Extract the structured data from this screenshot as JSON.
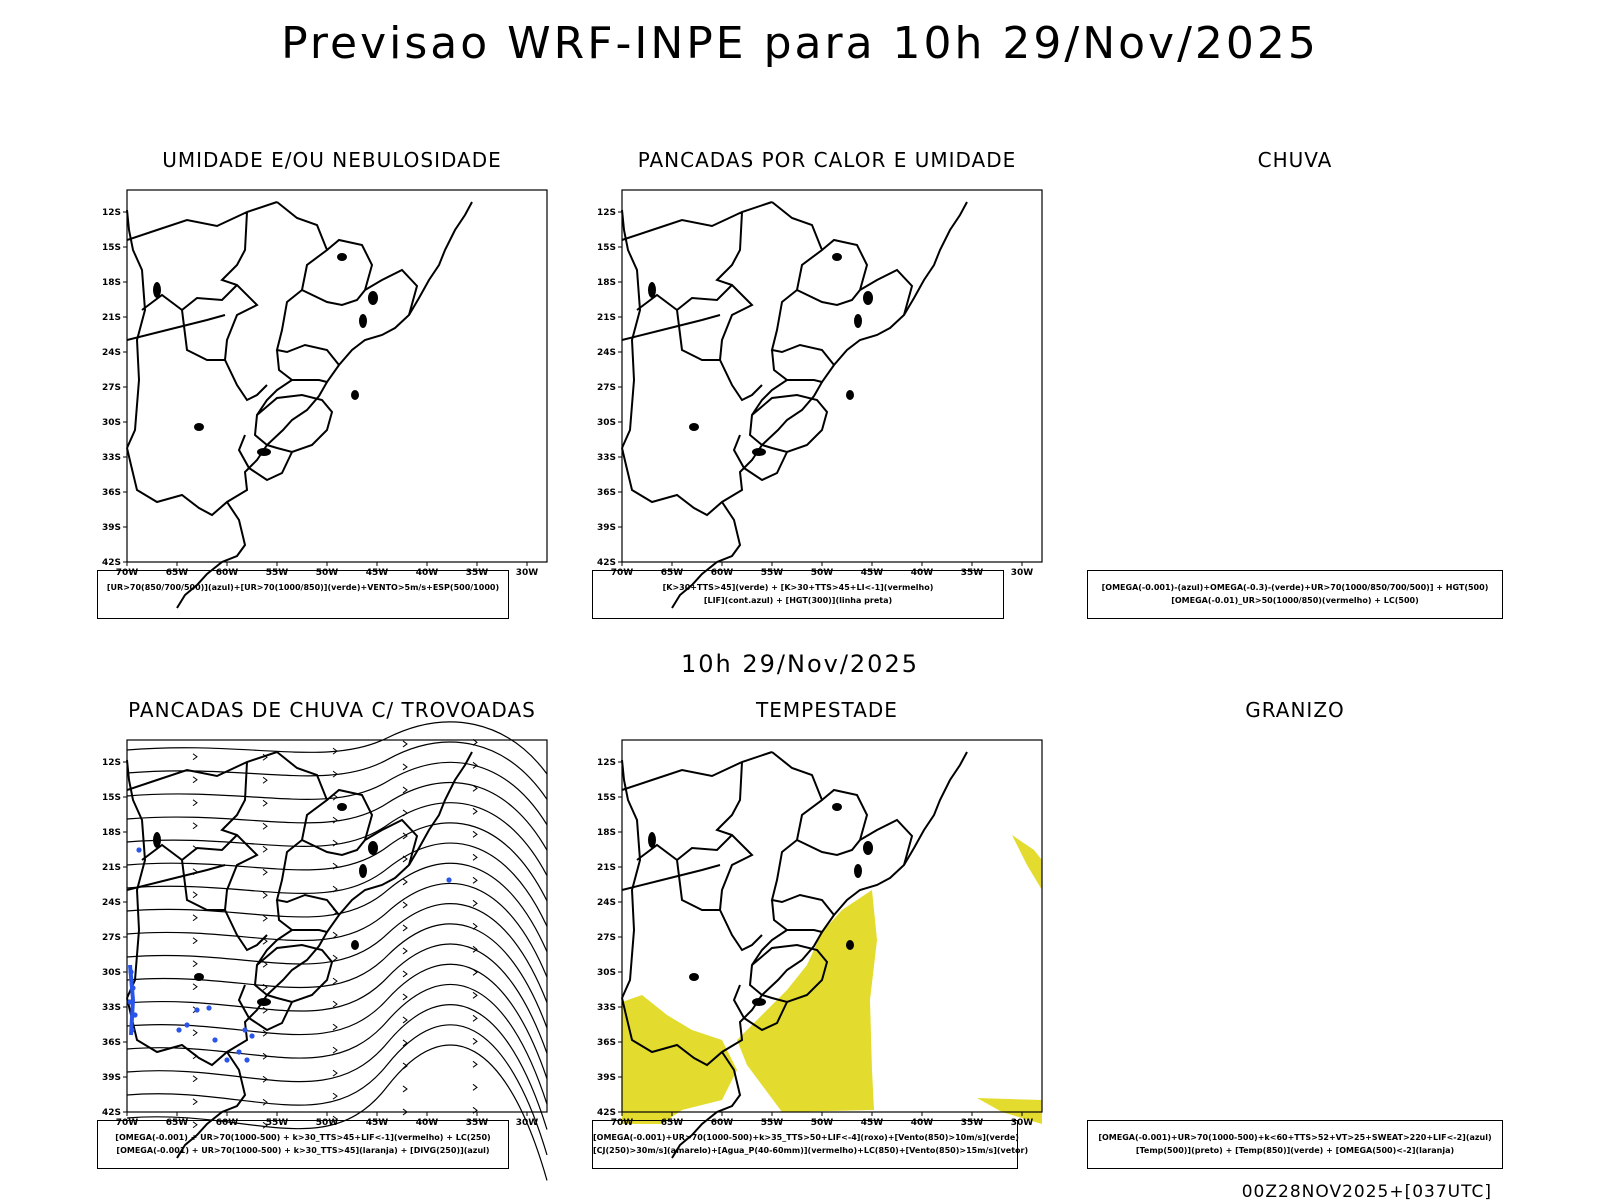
{
  "title": "Previsao WRF-INPE  para 10h 29/Nov/2025",
  "mid_title": "10h 29/Nov/2025",
  "footer": "00Z28NOV2025+[037UTC]",
  "axes": {
    "lat_labels": [
      "12S",
      "15S",
      "18S",
      "21S",
      "24S",
      "27S",
      "30S",
      "33S",
      "36S",
      "39S",
      "42S"
    ],
    "lon_labels": [
      "70W",
      "65W",
      "60W",
      "55W",
      "50W",
      "45W",
      "40W",
      "35W",
      "30W"
    ]
  },
  "panels": [
    {
      "title": "UMIDADE E/OU NEBULOSIDADE",
      "legend": [
        "[UR>70(850/700/500)](azul)+[UR>70(1000/850)](verde)+VENTO>5m/s+ESP(500/1000)"
      ]
    },
    {
      "title": "PANCADAS POR CALOR E UMIDADE",
      "legend": [
        "[K>30+TTS>45](verde) + [K>30+TTS>45+LI<-1](vermelho)",
        "[LIF](cont.azul) + [HGT(300)](linha preta)"
      ]
    },
    {
      "title": "CHUVA",
      "legend": [
        "[OMEGA(-0.001)-(azul)+OMEGA(-0.3)-(verde)+UR>70(1000/850/700/500)] + HGT(500)",
        "[OMEGA(-0.01)_UR>50(1000/850)(vermelho) + LC(500)"
      ]
    },
    {
      "title": "PANCADAS DE CHUVA C/ TROVOADAS",
      "legend": [
        "[OMEGA(-0.001) + UR>70(1000-500) + k>30_TTS>45+LIF<-1](vermelho) + LC(250)",
        "[OMEGA(-0.001) + UR>70(1000-500) + k>30_TTS>45](laranja) + [DIVG(250)](azul)"
      ]
    },
    {
      "title": "TEMPESTADE",
      "legend": [
        "[OMEGA(-0.001)+UR>70(1000-500)+k>35_TTS>50+LIF<-4](roxo)+[Vento(850)>10m/s](verde)",
        "[CJ(250)>30m/s](amarelo)+[Agua_P(40-60mm)](vermelho)+LC(850)+[Vento(850)>15m/s](vetor)"
      ]
    },
    {
      "title": "GRANIZO",
      "legend": [
        "[OMEGA(-0.001)+UR>70(1000-500)+k<60+TTS>52+VT>25+SWEAT>220+LIF<-2](azul)",
        "[Temp(500)](preto) + [Temp(850)](verde) + [OMEGA(500)<-2](laranja)"
      ]
    }
  ],
  "colors": {
    "storm_fill": "#e3dc2e",
    "divg_blue": "#2a55e8"
  }
}
